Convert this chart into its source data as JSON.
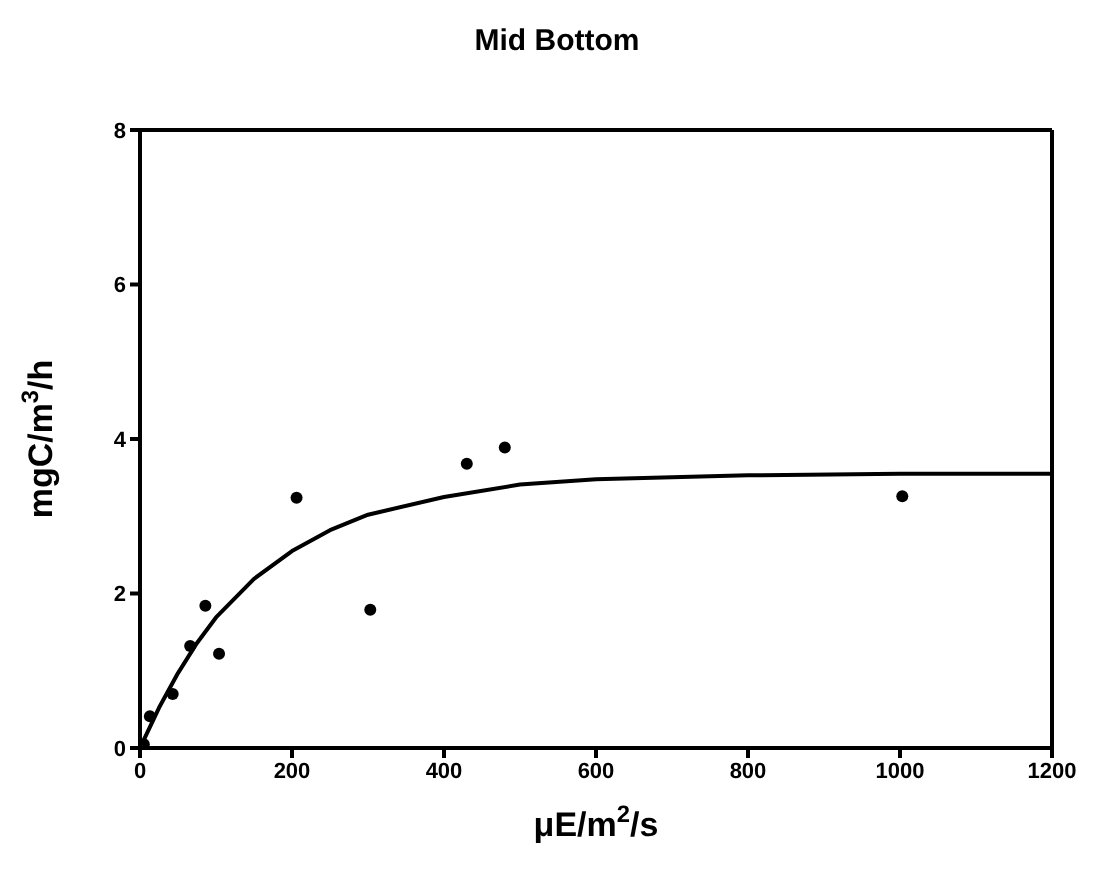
{
  "chart_data": {
    "type": "scatter",
    "title": "Mid Bottom",
    "xlabel": "μE/m$^{2}$/s",
    "ylabel": "mgC/m$^{3}$/h",
    "xlim": [
      0,
      1200
    ],
    "xticks": [
      0,
      200,
      400,
      600,
      800,
      1000,
      1200
    ],
    "ylim": [
      0,
      8
    ],
    "yticks": [
      0,
      2,
      4,
      6,
      8
    ],
    "marker": "circle",
    "series": [
      {
        "color": "#000000",
        "x": [
          5,
          13,
          43,
          66,
          86,
          104,
          206,
          303,
          430,
          480,
          1003
        ],
        "values": [
          0.05,
          0.41,
          0.7,
          1.32,
          1.84,
          1.22,
          3.24,
          1.79,
          3.68,
          3.89,
          3.26
        ]
      },
      {
        "type": "line",
        "color": "#000000",
        "marker": "none",
        "line_style": "solid",
        "x": [
          0,
          25,
          50,
          75,
          100,
          150,
          200,
          250,
          300,
          400,
          500,
          600,
          800,
          1000,
          1200
        ],
        "values": [
          0,
          0.52,
          0.97,
          1.36,
          1.69,
          2.19,
          2.55,
          2.82,
          3.02,
          3.25,
          3.41,
          3.48,
          3.53,
          3.55,
          3.55
        ]
      }
    ]
  }
}
